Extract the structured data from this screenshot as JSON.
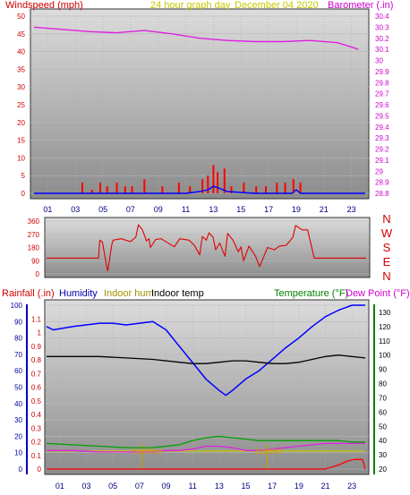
{
  "header": {
    "windspeed_label": "Windspeed (mph)",
    "graph_title": "24 hour graph day",
    "graph_date": "December 04 2020",
    "barometer_label": "Barometer (.in)"
  },
  "footer_labels": {
    "rainfall": "Rainfall (.in)",
    "humidity": "Humidity",
    "indoor_hum": "Indoor hum",
    "indoor_temp": "Indoor temp",
    "temperature": "Temperature (°F)",
    "dew_point": "Dew Point (°F)",
    "sunrise": "SunRise",
    "sunset": "SunSet"
  },
  "colors": {
    "wind": "#ff0000",
    "wind_gust": "#0000ff",
    "barometer": "#e020e0",
    "wind_dir": "#e00000",
    "humidity": "#0000ff",
    "indoor_hum": "#c8c800",
    "indoor_temp": "#000000",
    "temperature": "#00a000",
    "dew_point": "#e020e0",
    "rainfall": "#ff0000",
    "sun_marker": "#c8a000"
  },
  "chart_data": [
    {
      "type": "line",
      "panel": "wind-barometer",
      "x_ticks": [
        "01",
        "03",
        "05",
        "07",
        "09",
        "11",
        "13",
        "15",
        "17",
        "19",
        "21",
        "23"
      ],
      "wind_axis": {
        "label": "Windspeed (mph)",
        "ylim": [
          0,
          50
        ],
        "ticks": [
          "0",
          "5",
          "10",
          "15",
          "20",
          "25",
          "30",
          "35",
          "40",
          "45",
          "50"
        ]
      },
      "baro_axis": {
        "label": "Barometer (.in)",
        "ylim": [
          28.8,
          30.4
        ],
        "ticks": [
          "28.8",
          "28.9",
          "29",
          "29.1",
          "29.2",
          "29.3",
          "29.4",
          "29.5",
          "29.6",
          "29.7",
          "29.8",
          "29.9",
          "30",
          "30.1",
          "30.2",
          "30.3",
          "30.4"
        ]
      },
      "series": [
        {
          "name": "Barometer",
          "axis": "baro",
          "x": [
            0,
            2,
            4,
            6,
            8,
            10,
            12,
            14,
            16,
            18,
            20,
            22,
            23.5
          ],
          "values": [
            30.3,
            30.28,
            30.26,
            30.25,
            30.27,
            30.24,
            30.2,
            30.18,
            30.17,
            30.17,
            30.18,
            30.16,
            30.1
          ]
        },
        {
          "name": "Windspeed",
          "axis": "wind",
          "kind": "bars",
          "x": [
            3.5,
            4.2,
            4.8,
            5.3,
            6,
            6.6,
            7.1,
            8,
            9.3,
            10.5,
            11.3,
            12.2,
            12.6,
            13,
            13.3,
            13.8,
            14.3,
            15.2,
            16.1,
            16.8,
            17.6,
            18.2,
            18.8,
            19.3
          ],
          "values": [
            3,
            1,
            3,
            2,
            3,
            2,
            2,
            4,
            2,
            3,
            2,
            4,
            5,
            8,
            6,
            7,
            2,
            3,
            2,
            2,
            3,
            3,
            4,
            3
          ]
        },
        {
          "name": "Gust",
          "axis": "wind",
          "x": [
            0,
            11,
            12,
            12.6,
            13,
            13.4,
            14,
            16,
            18.7,
            19,
            19.3,
            24
          ],
          "values": [
            0,
            0,
            0.5,
            1,
            2,
            1.5,
            0.5,
            0,
            0,
            1,
            0,
            0
          ]
        }
      ]
    },
    {
      "type": "line",
      "panel": "wind-direction",
      "ylim": [
        0,
        360
      ],
      "ticks": [
        "0",
        "90",
        "180",
        "270",
        "360"
      ],
      "compass": [
        "N",
        "W",
        "S",
        "E",
        "N"
      ],
      "x": [
        0,
        3.9,
        4,
        4.2,
        4.5,
        4.6,
        4.9,
        5,
        5.6,
        6.3,
        6.7,
        6.9,
        7.2,
        7.5,
        7.7,
        7.8,
        8.2,
        8.6,
        9.6,
        10,
        10.7,
        11.1,
        11.5,
        11.7,
        12,
        12.2,
        12.5,
        12.7,
        13,
        13.4,
        13.6,
        14,
        14.4,
        14.6,
        14.8,
        15.2,
        15.7,
        16,
        16.6,
        17.1,
        17.5,
        18,
        18.5,
        18.7,
        19.2,
        19.6,
        20.1,
        24
      ],
      "values": [
        108,
        108,
        230,
        215,
        60,
        20,
        200,
        230,
        240,
        220,
        250,
        335,
        300,
        225,
        240,
        180,
        235,
        240,
        185,
        240,
        230,
        195,
        130,
        255,
        230,
        280,
        250,
        165,
        210,
        120,
        275,
        230,
        150,
        185,
        90,
        190,
        120,
        50,
        180,
        165,
        190,
        195,
        250,
        330,
        300,
        300,
        108,
        108
      ]
    },
    {
      "type": "line",
      "panel": "temp-humidity",
      "left_outer_axis": {
        "label": "Rainfall (.in)",
        "ylim": [
          0,
          1.2
        ],
        "ticks": [
          "0",
          "0.1",
          "0.2",
          "0.3",
          "0.4",
          "0.5",
          "0.6",
          "0.7",
          "0.8",
          "0.9",
          "1",
          "1.1"
        ]
      },
      "left_inner_axis": {
        "label": "Humidity",
        "ylim": [
          0,
          100
        ],
        "ticks": [
          "0",
          "10",
          "20",
          "30",
          "40",
          "50",
          "60",
          "70",
          "80",
          "90",
          "100"
        ]
      },
      "right_axis": {
        "label": "Temperature (°F)",
        "ylim": [
          20,
          135
        ],
        "ticks": [
          "20",
          "30",
          "40",
          "50",
          "60",
          "70",
          "80",
          "90",
          "100",
          "110",
          "120",
          "130"
        ]
      },
      "x_ticks": [
        "01",
        "03",
        "05",
        "07",
        "09",
        "11",
        "13",
        "15",
        "17",
        "19",
        "21",
        "23"
      ],
      "sunrise_hour": 7.2,
      "sunset_hour": 16.6,
      "series": [
        {
          "name": "Humidity",
          "axis": "humidity",
          "x": [
            0,
            0.5,
            2,
            4,
            5,
            6,
            7,
            8,
            9,
            10,
            11,
            12,
            13,
            13.5,
            14,
            15,
            16,
            17,
            18,
            19,
            20,
            21,
            22,
            23,
            24
          ],
          "values": [
            87,
            85,
            87,
            89,
            89,
            88,
            89,
            90,
            85,
            75,
            65,
            55,
            48,
            45,
            48,
            55,
            60,
            67,
            74,
            80,
            87,
            93,
            97,
            100,
            100
          ]
        },
        {
          "name": "Indoor hum",
          "axis": "humidity",
          "x": [
            0,
            24
          ],
          "values": [
            11,
            11
          ]
        },
        {
          "name": "Indoor temp",
          "axis": "temp",
          "x": [
            0,
            2,
            4,
            6,
            8,
            10,
            11,
            12,
            13,
            14,
            15,
            16,
            17,
            18,
            19,
            20,
            21,
            22,
            23,
            24
          ],
          "values": [
            99,
            99,
            99,
            98,
            97,
            95,
            94,
            94,
            95,
            96,
            96,
            95,
            94,
            94,
            95,
            97,
            99,
            100,
            99,
            98
          ]
        },
        {
          "name": "Temperature",
          "axis": "temp",
          "x": [
            0,
            2,
            4,
            6,
            8,
            9,
            10,
            11,
            12,
            13,
            14,
            15,
            16,
            17,
            18,
            19,
            20,
            21,
            22,
            23,
            24
          ],
          "values": [
            38,
            37,
            36,
            35,
            35,
            36,
            37,
            40,
            42,
            43,
            42,
            41,
            40,
            40,
            40,
            40,
            40,
            40,
            40,
            39,
            39
          ]
        },
        {
          "name": "Dew Point",
          "axis": "temp",
          "x": [
            0,
            2,
            4,
            6,
            8,
            9,
            10,
            11,
            12,
            13,
            14,
            15,
            16,
            17,
            18,
            19,
            20,
            21,
            22,
            23,
            24
          ],
          "values": [
            33,
            33,
            32,
            32,
            32,
            33,
            33,
            34,
            36,
            36,
            35,
            33,
            33,
            34,
            35,
            36,
            37,
            38,
            38,
            38,
            38
          ]
        },
        {
          "name": "Rainfall",
          "axis": "rain",
          "x": [
            0,
            21,
            22,
            22.7,
            23.2,
            23.8,
            24
          ],
          "values": [
            0,
            0,
            0.03,
            0.06,
            0.07,
            0.07,
            0
          ]
        }
      ]
    }
  ]
}
